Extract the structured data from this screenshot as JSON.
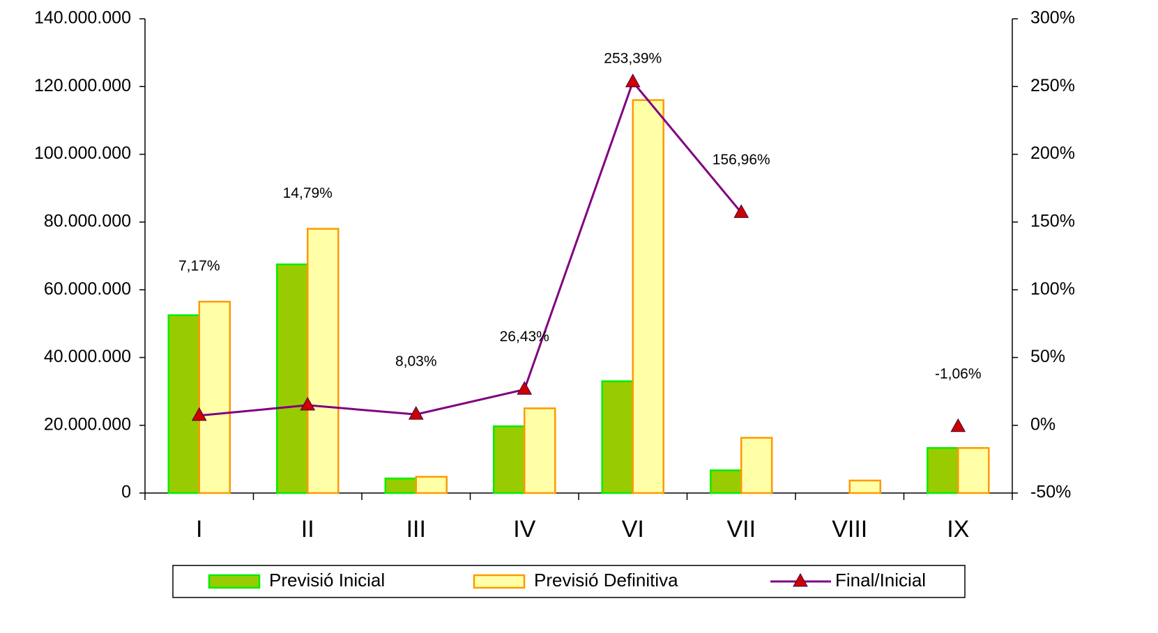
{
  "chart_data": {
    "type": "bar-line",
    "categories": [
      "I",
      "II",
      "III",
      "IV",
      "VI",
      "VII",
      "VIII",
      "IX"
    ],
    "series": [
      {
        "name": "Previsió Inicial",
        "type": "bar",
        "color": "#99cc00",
        "edge": "#00ee00",
        "values": [
          52500000,
          67500000,
          4300000,
          19700000,
          33000000,
          6700000,
          null,
          13300000
        ]
      },
      {
        "name": "Previsió Definitiva",
        "type": "bar",
        "color": "#ffffa8",
        "edge": "#ff9900",
        "values": [
          56500000,
          78000000,
          4800000,
          25000000,
          116000000,
          16300000,
          3700000,
          13300000
        ]
      },
      {
        "name": "Final/Inicial",
        "type": "line",
        "axis": "y2",
        "color": "#800080",
        "marker_color": "#cc0000",
        "values": [
          7.17,
          14.79,
          8.03,
          26.43,
          253.39,
          156.96,
          null,
          -1.06
        ],
        "value_labels": [
          "7,17%",
          "14,79%",
          "8,03%",
          "26,43%",
          "253,39%",
          "156,96%",
          null,
          "-1,06%"
        ]
      }
    ],
    "ylim": [
      0,
      140000000
    ],
    "yticks": [
      0,
      {
        "value": 20000000,
        "label": "20.000.000"
      },
      {
        "value": 40000000,
        "label": "40.000.000"
      },
      {
        "value": 60000000,
        "label": "60.000.000"
      },
      {
        "value": 80000000,
        "label": "80.000.000"
      },
      {
        "value": 100000000,
        "label": "100.000.000"
      },
      {
        "value": 120000000,
        "label": "120.000.000"
      },
      {
        "value": 140000000,
        "label": "140.000.000"
      }
    ],
    "y2lim": [
      -50,
      300
    ],
    "y2ticks": [
      {
        "value": -50,
        "label": "-50%"
      },
      {
        "value": 0,
        "label": "0%"
      },
      {
        "value": 50,
        "label": "50%"
      },
      {
        "value": 100,
        "label": "100%"
      },
      {
        "value": 150,
        "label": "150%"
      },
      {
        "value": 200,
        "label": "200%"
      },
      {
        "value": 250,
        "label": "250%"
      },
      {
        "value": 300,
        "label": "300%"
      }
    ],
    "legend": "bottom"
  }
}
